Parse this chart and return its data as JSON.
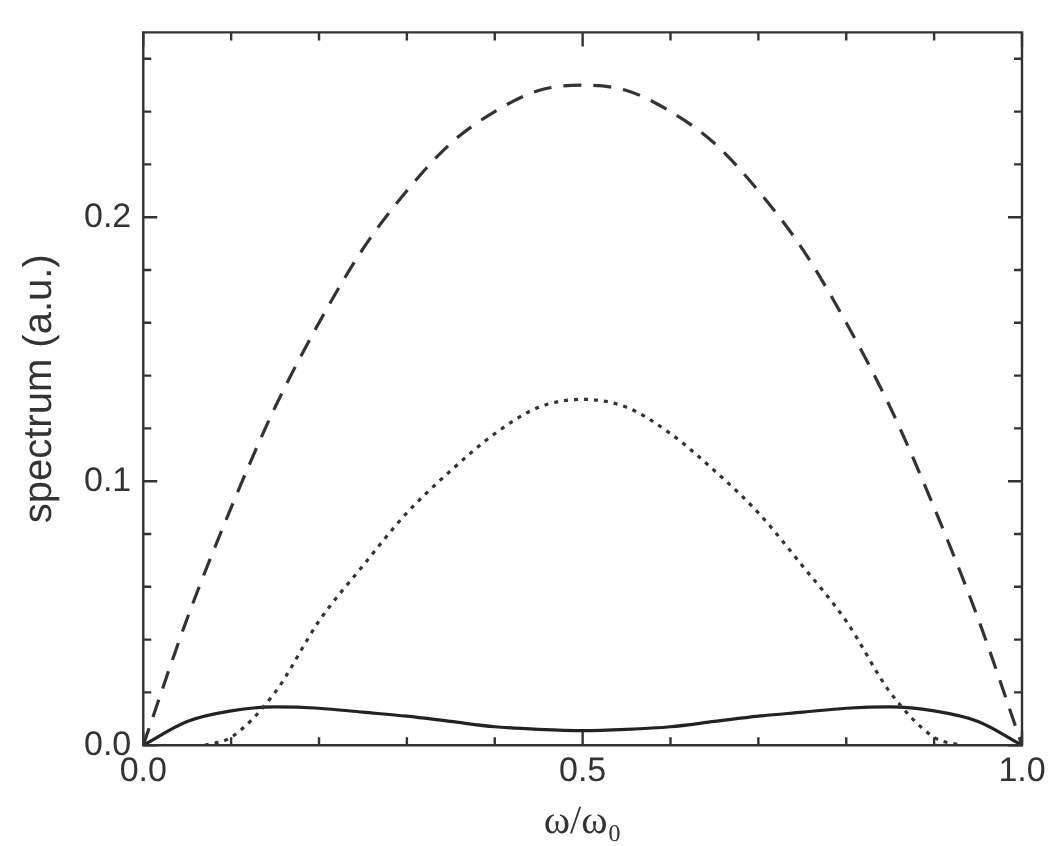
{
  "chart_data": {
    "type": "line",
    "xlabel": "ω/ω₀",
    "ylabel": "spectrum (a.u.)",
    "x": [
      0,
      0.05,
      0.1,
      0.15,
      0.2,
      0.25,
      0.3,
      0.35,
      0.4,
      0.45,
      0.5,
      0.55,
      0.6,
      0.65,
      0.7,
      0.75,
      0.8,
      0.85,
      0.9,
      0.95,
      1
    ],
    "series": [
      {
        "color": "#333333",
        "line_style": "dashed",
        "values": [
          0,
          0.048,
          0.09,
          0.128,
          0.16,
          0.188,
          0.21,
          0.228,
          0.24,
          0.248,
          0.25,
          0.248,
          0.24,
          0.228,
          0.21,
          0.188,
          0.16,
          0.128,
          0.09,
          0.048,
          0
        ]
      },
      {
        "color": "#333333",
        "line_style": "dotted",
        "x": [
          0.07,
          0.1,
          0.15,
          0.2,
          0.25,
          0.3,
          0.35,
          0.4,
          0.45,
          0.5,
          0.55,
          0.6,
          0.65,
          0.7,
          0.75,
          0.8,
          0.85,
          0.9,
          0.93
        ],
        "values": [
          0,
          0.003,
          0.02,
          0.047,
          0.068,
          0.088,
          0.104,
          0.118,
          0.128,
          0.131,
          0.128,
          0.118,
          0.104,
          0.088,
          0.068,
          0.047,
          0.02,
          0.003,
          0
        ]
      },
      {
        "color": "#222222",
        "line_style": "solid",
        "values": [
          0,
          0.009,
          0.013,
          0.0145,
          0.014,
          0.0125,
          0.011,
          0.009,
          0.007,
          0.006,
          0.0055,
          0.006,
          0.007,
          0.009,
          0.011,
          0.0125,
          0.014,
          0.0145,
          0.013,
          0.009,
          0
        ]
      }
    ],
    "xlim": [
      0,
      1
    ],
    "ylim": [
      0,
      0.27
    ],
    "xticks": [
      {
        "value": 0,
        "label": "0.0"
      },
      {
        "value": 0.1,
        "label": null
      },
      {
        "value": 0.2,
        "label": null
      },
      {
        "value": 0.3,
        "label": null
      },
      {
        "value": 0.4,
        "label": null
      },
      {
        "value": 0.5,
        "label": "0.5"
      },
      {
        "value": 0.6,
        "label": null
      },
      {
        "value": 0.7,
        "label": null
      },
      {
        "value": 0.8,
        "label": null
      },
      {
        "value": 0.9,
        "label": null
      },
      {
        "value": 1,
        "label": "1.0"
      }
    ],
    "yticks": [
      {
        "value": 0,
        "label": "0.0"
      },
      {
        "value": 0.02,
        "label": null
      },
      {
        "value": 0.04,
        "label": null
      },
      {
        "value": 0.06,
        "label": null
      },
      {
        "value": 0.08,
        "label": null
      },
      {
        "value": 0.1,
        "label": "0.1"
      },
      {
        "value": 0.12,
        "label": null
      },
      {
        "value": 0.14,
        "label": null
      },
      {
        "value": 0.16,
        "label": null
      },
      {
        "value": 0.18,
        "label": null
      },
      {
        "value": 0.2,
        "label": "0.2"
      },
      {
        "value": 0.22,
        "label": null
      },
      {
        "value": 0.24,
        "label": null
      },
      {
        "value": 0.26,
        "label": null
      }
    ],
    "grid": false,
    "legend": false,
    "marker": "none"
  }
}
